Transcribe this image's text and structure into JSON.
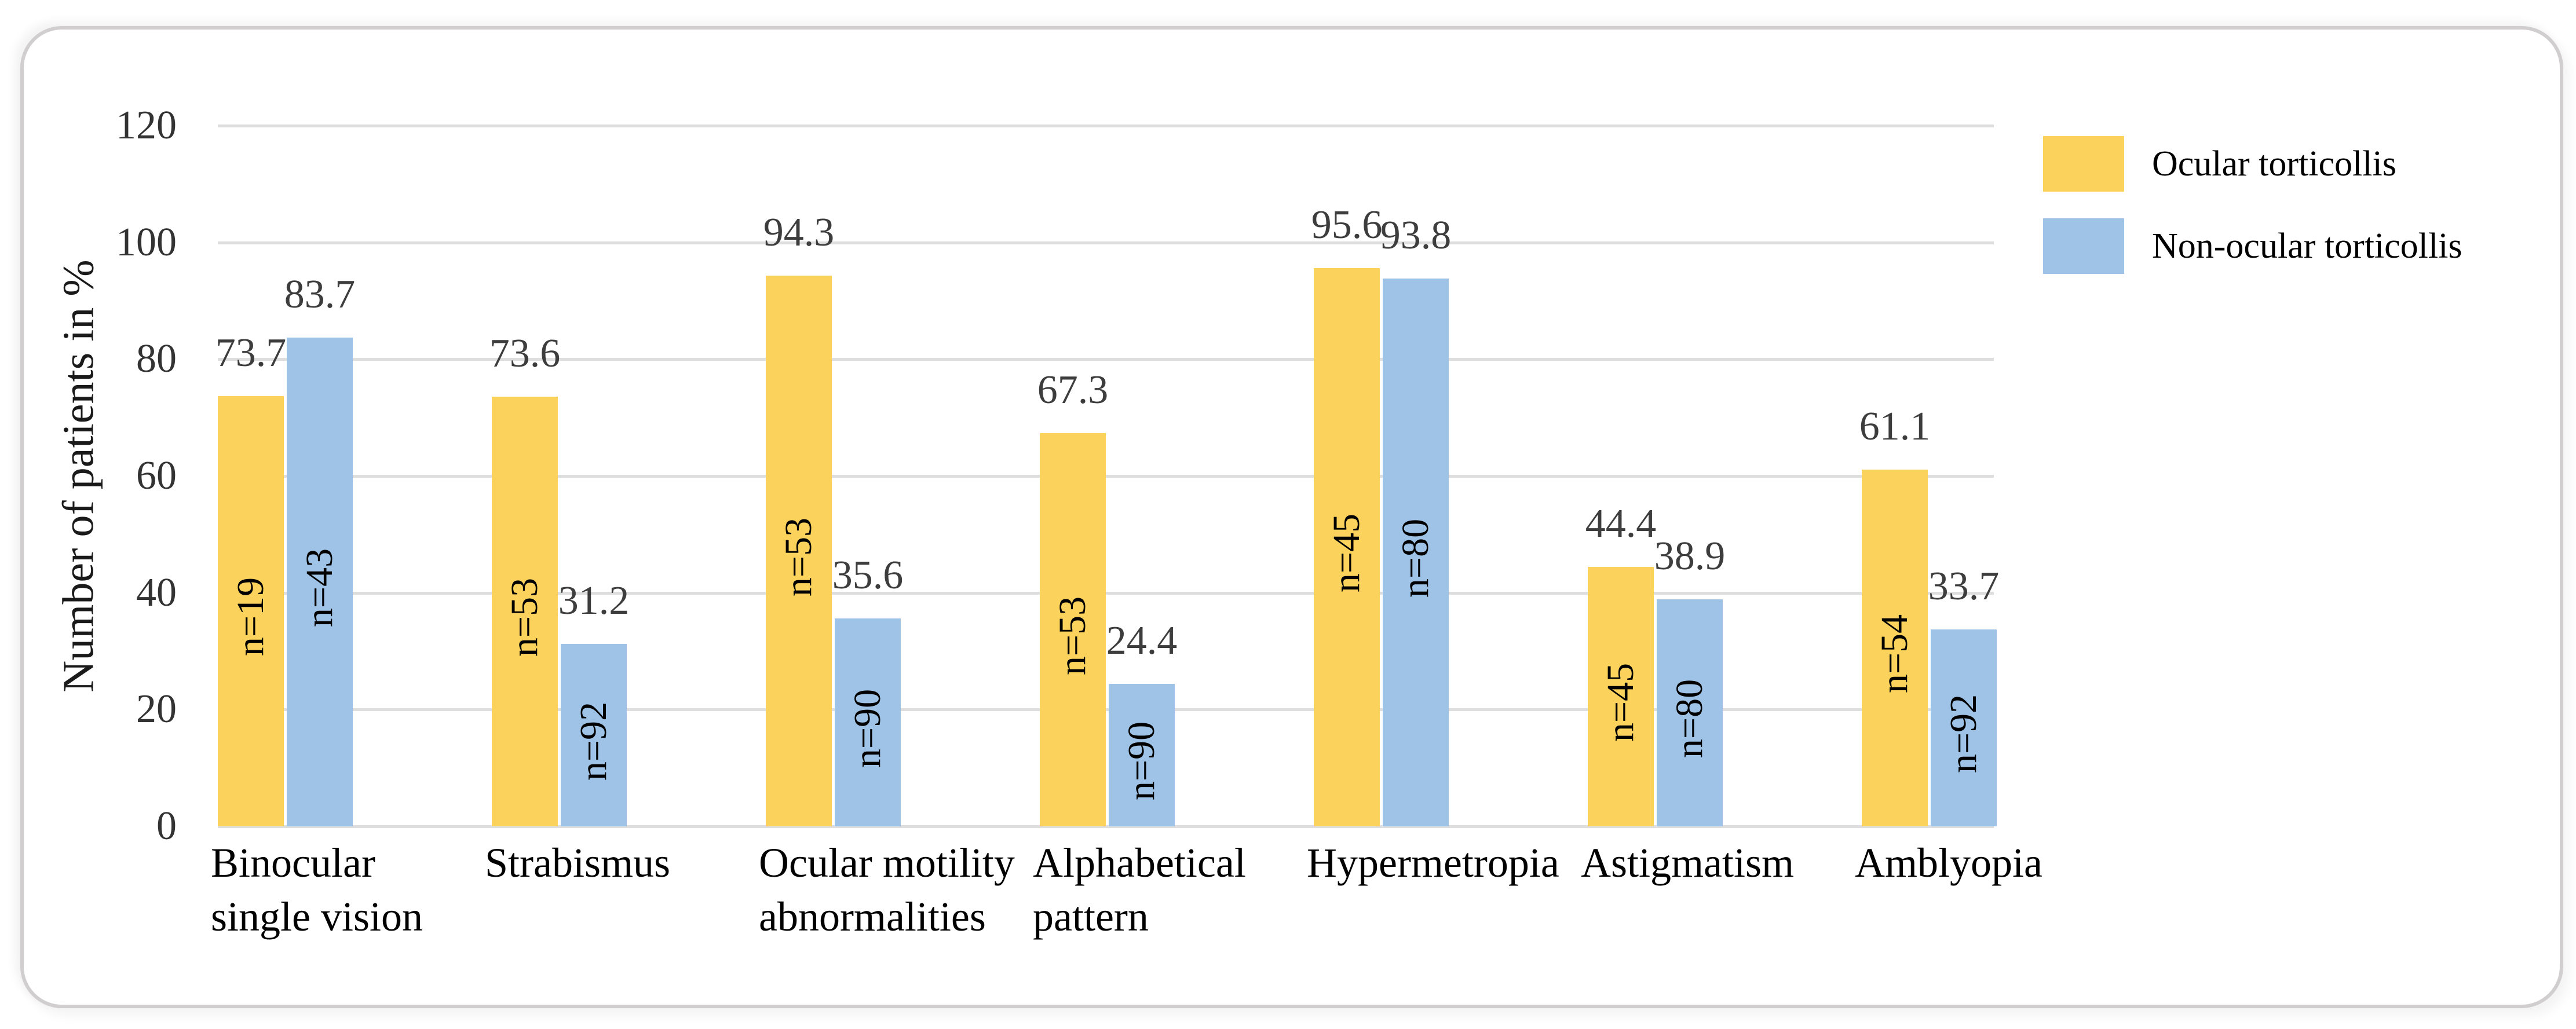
{
  "chart_data": {
    "type": "bar",
    "title": "",
    "xlabel": "",
    "ylabel": "Number of patients in %",
    "ylim": [
      0,
      120
    ],
    "yticks": [
      0,
      20,
      40,
      60,
      80,
      100,
      120
    ],
    "grid": true,
    "legend_position": "top-right",
    "categories": [
      "Binocular single vision",
      "Strabismus",
      "Ocular motility abnormalities",
      "Alphabetical pattern",
      "Hypermetropia",
      "Astigmatism",
      "Amblyopia"
    ],
    "category_lines": [
      [
        "Binocular",
        "single vision"
      ],
      [
        "Strabismus"
      ],
      [
        "Ocular motility",
        "abnormalities"
      ],
      [
        "Alphabetical",
        "pattern"
      ],
      [
        "Hypermetropia"
      ],
      [
        "Astigmatism"
      ],
      [
        "Amblyopia"
      ]
    ],
    "series": [
      {
        "name": "Ocular torticollis",
        "color": "#FBD25C",
        "values": [
          73.7,
          73.6,
          94.3,
          67.3,
          95.6,
          44.4,
          61.1
        ],
        "value_labels": [
          "73.7",
          "73.6",
          "94.3",
          "67.3",
          "95.6",
          "44.4",
          "61.1"
        ],
        "bar_labels": [
          "n=19",
          "n=53",
          "n=53",
          "n=53",
          "n=45",
          "n=45",
          "n=54"
        ]
      },
      {
        "name": "Non-ocular torticollis",
        "color": "#9EC3E6",
        "values": [
          83.7,
          31.2,
          35.6,
          24.4,
          93.8,
          38.9,
          33.7
        ],
        "value_labels": [
          "83.7",
          "31.2",
          "35.6",
          "24.4",
          "93.8",
          "38.9",
          "33.7"
        ],
        "bar_labels": [
          "n=43",
          "n=92",
          "n=90",
          "n=90",
          "n=80",
          "n=80",
          "n=92"
        ]
      }
    ]
  },
  "styles": {
    "gridline_color": "#DEDEDE",
    "value_label_color": "#3D3D3D",
    "tick_label_color": "#333333",
    "text_color": "#000000",
    "card_border_color": "#D0CECE",
    "background_color": "#FFFFFF"
  }
}
